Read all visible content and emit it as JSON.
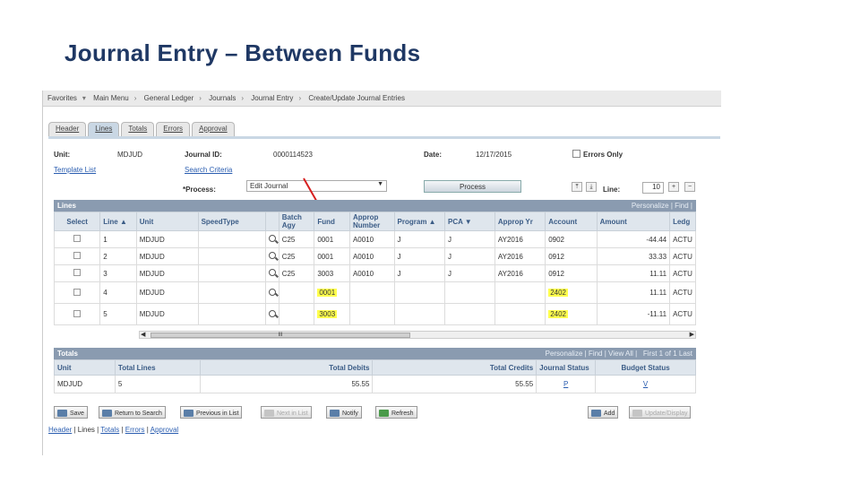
{
  "slide": {
    "title": "Journal Entry – Between Funds"
  },
  "breadcrumb": [
    "Favorites",
    "Main Menu",
    "General Ledger",
    "Journals",
    "Journal Entry",
    "Create/Update Journal Entries"
  ],
  "tabs": [
    "Header",
    "Lines",
    "Totals",
    "Errors",
    "Approval"
  ],
  "header": {
    "unit_label": "Unit:",
    "unit_value": "MDJUD",
    "journal_id_label": "Journal ID:",
    "journal_id_value": "0000114523",
    "date_label": "Date:",
    "date_value": "12/17/2015",
    "errors_only_label": "Errors Only",
    "template_list_link": "Template List",
    "search_criteria_link": "Search Criteria",
    "process_label": "*Process:",
    "process_value": "Edit Journal",
    "process_button": "Process",
    "line_label": "Line:",
    "line_value": "10"
  },
  "lines": {
    "title": "Lines",
    "toolbar": "Personalize | Find |",
    "columns": [
      "Select",
      "Line",
      "Unit",
      "SpeedType",
      "",
      "Batch Agy",
      "Fund",
      "Approp Number",
      "Program",
      "PCA",
      "Approp Yr",
      "Account",
      "Amount",
      "Ledg"
    ],
    "rows": [
      {
        "line": "1",
        "unit": "MDJUD",
        "batch": "C25",
        "fund": "0001",
        "approp": "A0010",
        "program": "J",
        "pca": "J",
        "appr_yr": "AY2016",
        "account": "0902",
        "amount": "-44.44",
        "ledger": "ACTU"
      },
      {
        "line": "2",
        "unit": "MDJUD",
        "batch": "C25",
        "fund": "0001",
        "approp": "A0010",
        "program": "J",
        "pca": "J",
        "appr_yr": "AY2016",
        "account": "0912",
        "amount": "33.33",
        "ledger": "ACTU"
      },
      {
        "line": "3",
        "unit": "MDJUD",
        "batch": "C25",
        "fund": "3003",
        "approp": "A0010",
        "program": "J",
        "pca": "J",
        "appr_yr": "AY2016",
        "account": "0912",
        "amount": "11.11",
        "ledger": "ACTU"
      },
      {
        "line": "4",
        "unit": "MDJUD",
        "batch": "",
        "fund": "0001",
        "approp": "",
        "program": "",
        "pca": "",
        "appr_yr": "",
        "account": "2402",
        "amount": "11.11",
        "ledger": "ACTU"
      },
      {
        "line": "5",
        "unit": "MDJUD",
        "batch": "",
        "fund": "3003",
        "approp": "",
        "program": "",
        "pca": "",
        "appr_yr": "",
        "account": "2402",
        "amount": "-11.11",
        "ledger": "ACTU"
      }
    ],
    "scroll_label": "III"
  },
  "totals": {
    "title": "Totals",
    "toolbar": "Personalize | Find | View All |",
    "nav": "First  1 of 1  Last",
    "columns": [
      "Unit",
      "Total Lines",
      "Total Debits",
      "Total Credits",
      "Journal Status",
      "Budget Status"
    ],
    "row": {
      "unit": "MDJUD",
      "total_lines": "5",
      "total_debits": "55.55",
      "total_credits": "55.55",
      "journal_status": "P",
      "budget_status": "V"
    }
  },
  "buttons": {
    "save": "Save",
    "return_to_search": "Return to Search",
    "previous_in_list": "Previous in List",
    "next_in_list": "Next in List",
    "notify": "Notify",
    "refresh": "Refresh",
    "add": "Add",
    "update_display": "Update/Display"
  },
  "footer_links": [
    "Header",
    "Lines",
    "Totals",
    "Errors",
    "Approval"
  ],
  "colors": {
    "highlight": "#ffff4d",
    "arrow": "#d62020",
    "title": "#1f3864"
  }
}
